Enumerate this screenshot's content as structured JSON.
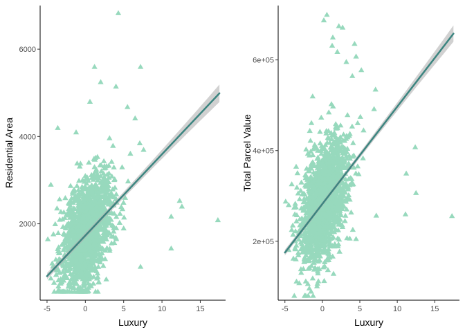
{
  "colors": {
    "point": "#97d9bd",
    "fit_line": "#3c8580",
    "ribbon": "#b3b3b3",
    "axis": "#000000",
    "tick_text": "#4d4d4d"
  },
  "chart_data": [
    {
      "type": "scatter",
      "marker": "triangle",
      "xlabel": "Luxury",
      "ylabel": "Residential Area",
      "xlim": [
        -5.9,
        18.3
      ],
      "ylim": [
        250,
        7000
      ],
      "xticks": [
        -5,
        0,
        5,
        10,
        15
      ],
      "xtick_labels": [
        "-5",
        "0",
        "5",
        "10",
        "15"
      ],
      "yticks": [
        2000,
        4000,
        6000
      ],
      "ytick_labels": [
        "2000",
        "4000",
        "6000"
      ],
      "grid": false,
      "fit": {
        "method": "lm",
        "se": true,
        "x": [
          -5,
          17.5
        ],
        "y": [
          800,
          4990
        ],
        "se_band": [
          60,
          200
        ]
      },
      "cloud": {
        "count": 1600,
        "x_center": 0.2,
        "x_sd": 1.6,
        "x_min": -4.5,
        "x_max": 7,
        "y_intercept": 1810,
        "y_slope": 180,
        "y_sd": 600,
        "y_min": 450,
        "y_max": 5000
      },
      "outliers": [
        {
          "x": 4.3,
          "y": 6830
        },
        {
          "x": 1.2,
          "y": 5600
        },
        {
          "x": 7.2,
          "y": 5600
        },
        {
          "x": 4.0,
          "y": 5150
        },
        {
          "x": 2.0,
          "y": 5250
        },
        {
          "x": 5.5,
          "y": 4680
        },
        {
          "x": 6.5,
          "y": 4420
        },
        {
          "x": 7.1,
          "y": 3850
        },
        {
          "x": 7.6,
          "y": 3700
        },
        {
          "x": -3.6,
          "y": 4200
        },
        {
          "x": 12.3,
          "y": 2530
        },
        {
          "x": 12.6,
          "y": 2400
        },
        {
          "x": 11.2,
          "y": 2170
        },
        {
          "x": 17.3,
          "y": 2090
        },
        {
          "x": 11.2,
          "y": 1440
        },
        {
          "x": -4.9,
          "y": 1650
        },
        {
          "x": 7.2,
          "y": 1020
        },
        {
          "x": 5.0,
          "y": 1900
        },
        {
          "x": 5.2,
          "y": 2600
        },
        {
          "x": 4.8,
          "y": 3300
        },
        {
          "x": 0.6,
          "y": 4800
        },
        {
          "x": -1.2,
          "y": 4100
        }
      ]
    },
    {
      "type": "scatter",
      "marker": "triangle",
      "xlabel": "Luxury",
      "ylabel": "Total Parcel Value",
      "xlim": [
        -5.9,
        18.3
      ],
      "ylim": [
        70000,
        720000
      ],
      "xticks": [
        -5,
        0,
        5,
        10,
        15
      ],
      "xtick_labels": [
        "-5",
        "0",
        "5",
        "10",
        "15"
      ],
      "yticks": [
        200000,
        400000,
        600000
      ],
      "ytick_labels": [
        "2e+05",
        "4e+05",
        "6e+05"
      ],
      "grid": false,
      "fit": {
        "method": "lm",
        "se": true,
        "x": [
          -5,
          17.5
        ],
        "y": [
          175000,
          658000
        ],
        "se_band": [
          5000,
          18000
        ]
      },
      "cloud": {
        "count": 1600,
        "x_center": 0.2,
        "x_sd": 1.6,
        "x_min": -4.5,
        "x_max": 7,
        "y_intercept": 285000,
        "y_slope": 21000,
        "y_sd": 62000,
        "y_min": 80000,
        "y_max": 600000
      },
      "outliers": [
        {
          "x": 0.6,
          "y": 700000
        },
        {
          "x": 0.2,
          "y": 688000
        },
        {
          "x": 2.2,
          "y": 675000
        },
        {
          "x": 2.7,
          "y": 672000
        },
        {
          "x": 1.4,
          "y": 650000
        },
        {
          "x": 1.3,
          "y": 632000
        },
        {
          "x": 4.3,
          "y": 636000
        },
        {
          "x": 2.0,
          "y": 618000
        },
        {
          "x": 4.5,
          "y": 608000
        },
        {
          "x": 3.2,
          "y": 596000
        },
        {
          "x": 5.2,
          "y": 578000
        },
        {
          "x": 4.0,
          "y": 565000
        },
        {
          "x": 7.1,
          "y": 535000
        },
        {
          "x": -1.3,
          "y": 520000
        },
        {
          "x": 6.9,
          "y": 492000
        },
        {
          "x": 12.4,
          "y": 408000
        },
        {
          "x": 11.2,
          "y": 350000
        },
        {
          "x": 12.5,
          "y": 307000
        },
        {
          "x": 11.1,
          "y": 260000
        },
        {
          "x": 17.3,
          "y": 256000
        },
        {
          "x": 7.2,
          "y": 257000
        },
        {
          "x": -4.9,
          "y": 288000
        },
        {
          "x": -2.8,
          "y": 330000
        },
        {
          "x": -3.5,
          "y": 365000
        },
        {
          "x": 5.5,
          "y": 445000
        }
      ]
    }
  ]
}
